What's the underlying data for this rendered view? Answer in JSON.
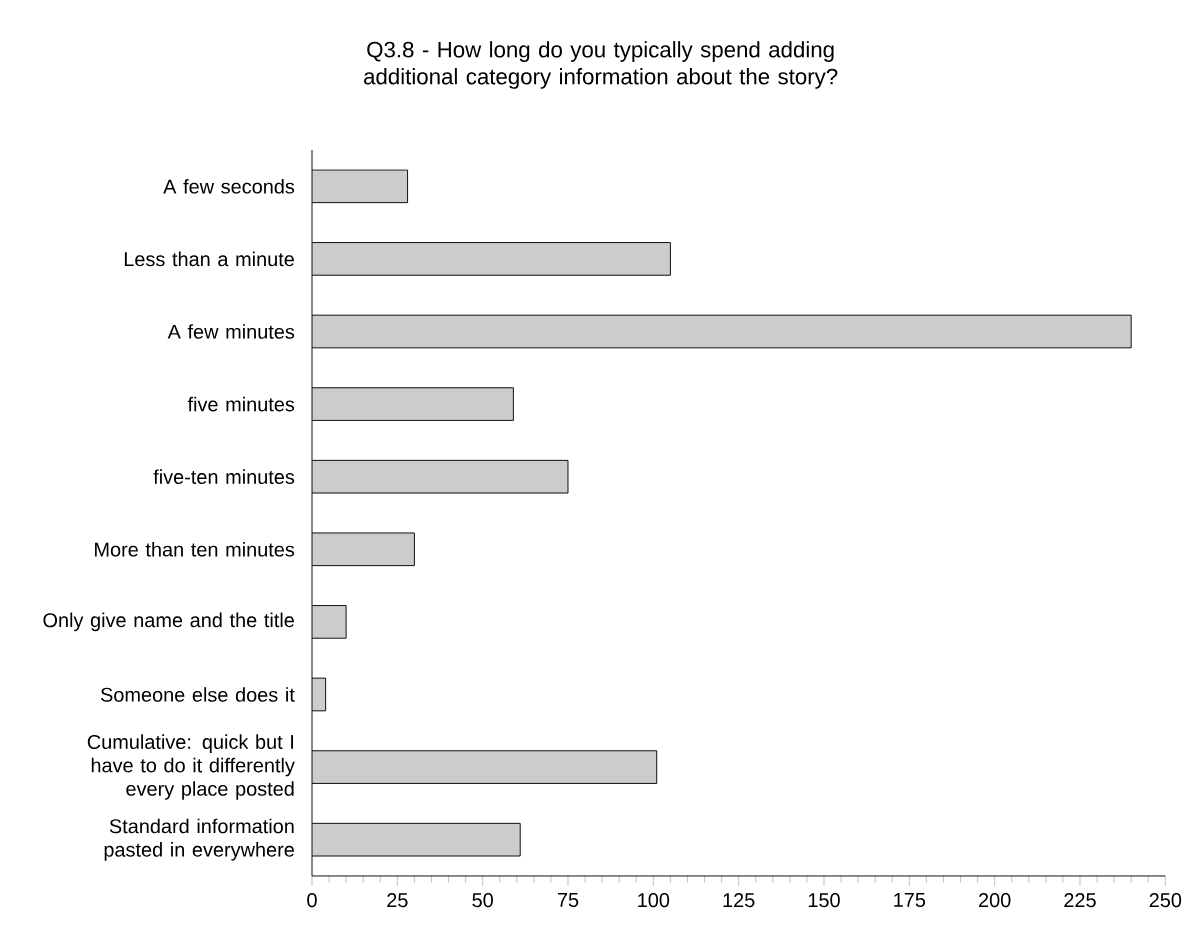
{
  "chart_data": {
    "type": "bar",
    "orientation": "horizontal",
    "title": "Q3.8 - How long do you typically spend adding additional category information about the story?",
    "categories": [
      "A few seconds",
      "Less than a minute",
      "A few minutes",
      "five minutes",
      "five-ten minutes",
      "More than ten minutes",
      "Only give name and the title",
      "Someone else does it",
      "Cumulative: quick but I have to do it differently every place posted",
      "Standard information pasted in everywhere"
    ],
    "values": [
      28,
      105,
      240,
      59,
      75,
      30,
      10,
      4,
      101,
      61
    ],
    "color": "#cccccc",
    "xlim": [
      0,
      250
    ],
    "xticks": [
      0,
      25,
      50,
      75,
      100,
      125,
      150,
      175,
      200,
      225,
      250
    ],
    "grid": false
  }
}
